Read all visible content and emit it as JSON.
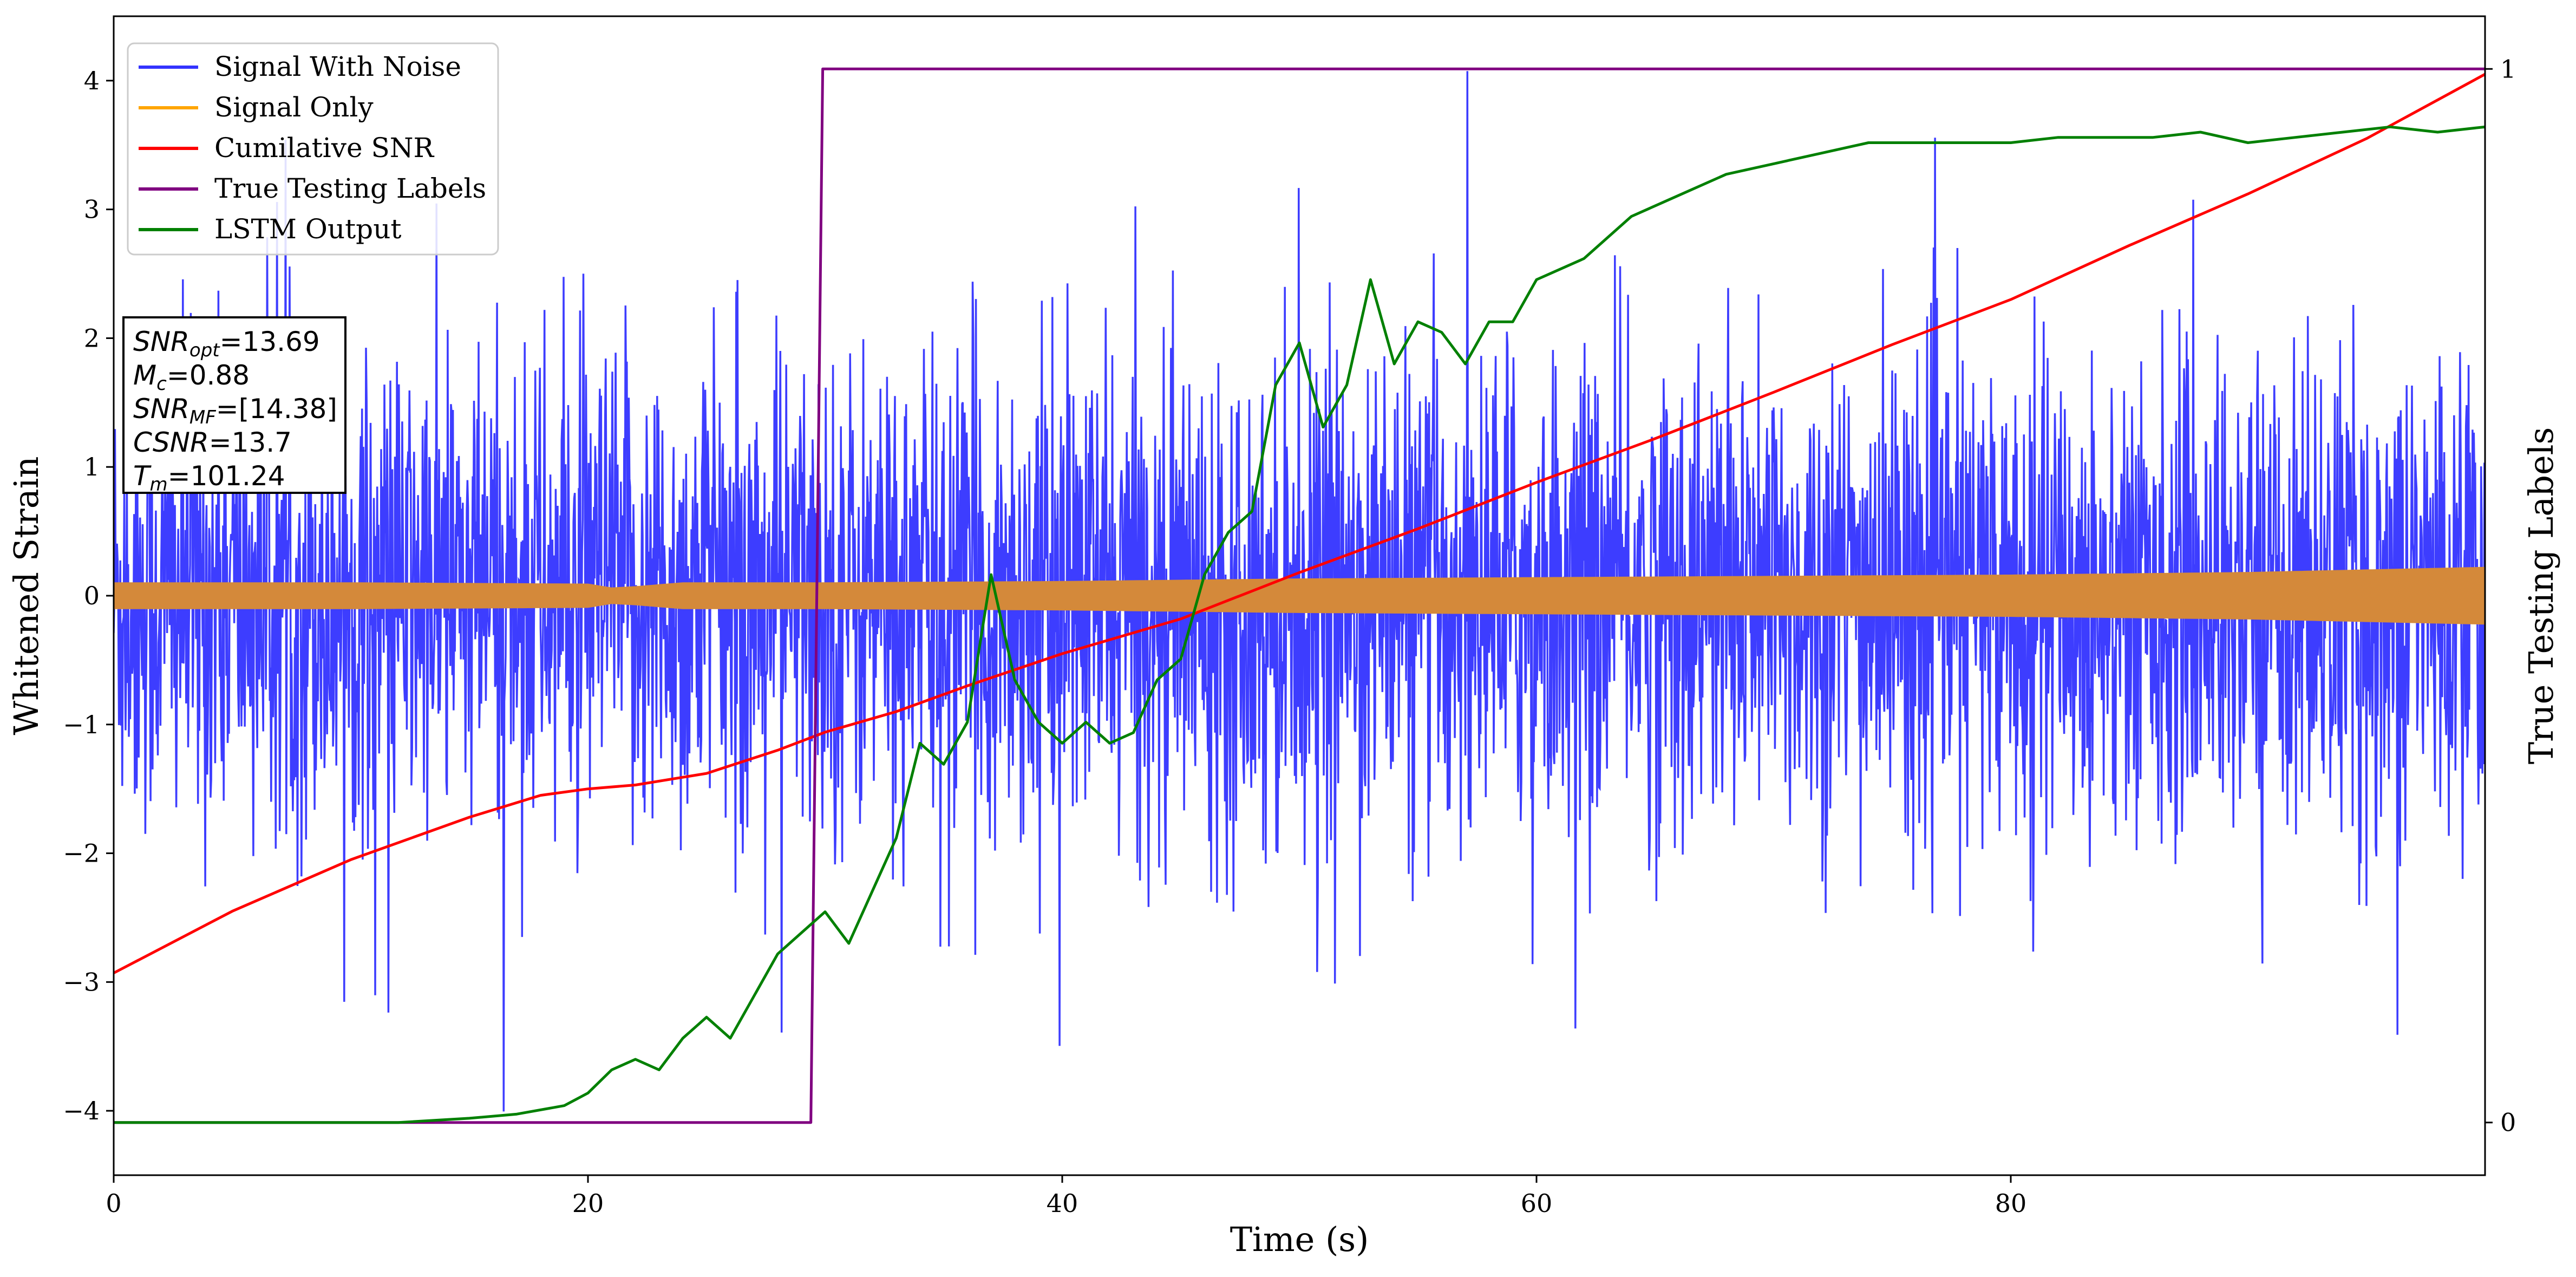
{
  "chart_data": {
    "type": "line",
    "xlabel": "Time (s)",
    "ylabel": "Whitened Strain",
    "ylabel_right": "True Testing Labels",
    "xlim": [
      0,
      100
    ],
    "ylim": [
      -4.5,
      4.5
    ],
    "ylim_right": [
      -0.05,
      1.05
    ],
    "x_ticks": [
      0,
      20,
      40,
      60,
      80
    ],
    "y_ticks": [
      -4,
      -3,
      -2,
      -1,
      0,
      1,
      2,
      3,
      4
    ],
    "y_ticks_right": [
      0,
      1
    ],
    "grid": false,
    "legend_placement": "upper-left",
    "annotation": {
      "lines": [
        {
          "var": "SNR",
          "sub": "opt",
          "value": "=13.69"
        },
        {
          "var": "M",
          "sub": "c",
          "value": "=0.88"
        },
        {
          "var": "SNR",
          "sub": "MF",
          "value": "=[14.38]"
        },
        {
          "var": "CSNR",
          "sub": "",
          "value": "=13.7"
        },
        {
          "var": "T",
          "sub": "m",
          "value": "=101.24"
        }
      ]
    },
    "series": [
      {
        "name": "Signal With Noise",
        "color": "#3333ff",
        "axis": "left",
        "style": "noise",
        "envelope_x": [
          0,
          10,
          20,
          30,
          40,
          50,
          60,
          70,
          80,
          90,
          100
        ],
        "envelope_amp": [
          1.5,
          1.5,
          1.5,
          1.5,
          1.5,
          1.5,
          1.5,
          1.5,
          1.5,
          1.5,
          1.5
        ]
      },
      {
        "name": "Signal Only",
        "color": "#ffa500",
        "axis": "left",
        "style": "band",
        "x": [
          0,
          10,
          20,
          21,
          22,
          24,
          30,
          40,
          50,
          60,
          70,
          80,
          90,
          95,
          100
        ],
        "amp": [
          0.1,
          0.1,
          0.09,
          0.06,
          0.07,
          0.1,
          0.1,
          0.11,
          0.13,
          0.14,
          0.15,
          0.16,
          0.18,
          0.2,
          0.22
        ]
      },
      {
        "name": "Cumilative SNR",
        "color": "#ff0000",
        "axis": "left",
        "x": [
          0,
          5,
          10,
          15,
          18,
          20,
          22,
          25,
          28,
          30,
          33,
          36,
          40,
          45,
          50,
          55,
          60,
          65,
          70,
          75,
          80,
          85,
          90,
          95,
          100
        ],
        "y": [
          -2.93,
          -2.45,
          -2.05,
          -1.72,
          -1.55,
          -1.5,
          -1.47,
          -1.38,
          -1.2,
          -1.06,
          -0.9,
          -0.7,
          -0.45,
          -0.18,
          0.18,
          0.52,
          0.88,
          1.22,
          1.58,
          1.95,
          2.3,
          2.72,
          3.12,
          3.55,
          4.05
        ]
      },
      {
        "name": "True Testing Labels",
        "color": "#800080",
        "axis": "right",
        "x": [
          0,
          29.4,
          29.9,
          100
        ],
        "y": [
          0,
          0,
          1,
          1
        ]
      },
      {
        "name": "LSTM Output",
        "color": "#008000",
        "axis": "right",
        "x": [
          0,
          10,
          12,
          15,
          17,
          19,
          20,
          21,
          22,
          23,
          24,
          25,
          26,
          27,
          28,
          29,
          30,
          31,
          32,
          33,
          34,
          35,
          36,
          37,
          38,
          39,
          40,
          41,
          42,
          43,
          44,
          45,
          46,
          47,
          48,
          49,
          50,
          51,
          52,
          53,
          54,
          55,
          56,
          57,
          58,
          59,
          60,
          62,
          64,
          66,
          68,
          70,
          72,
          74,
          76,
          78,
          80,
          82,
          84,
          86,
          88,
          90,
          92,
          94,
          96,
          98,
          100
        ],
        "y": [
          0,
          0,
          0,
          0.004,
          0.008,
          0.016,
          0.028,
          0.05,
          0.06,
          0.05,
          0.08,
          0.1,
          0.08,
          0.12,
          0.16,
          0.18,
          0.2,
          0.17,
          0.22,
          0.27,
          0.36,
          0.34,
          0.38,
          0.52,
          0.42,
          0.38,
          0.36,
          0.38,
          0.36,
          0.37,
          0.42,
          0.44,
          0.52,
          0.56,
          0.58,
          0.7,
          0.74,
          0.66,
          0.7,
          0.8,
          0.72,
          0.76,
          0.75,
          0.72,
          0.76,
          0.76,
          0.8,
          0.82,
          0.86,
          0.88,
          0.9,
          0.91,
          0.92,
          0.93,
          0.93,
          0.93,
          0.93,
          0.935,
          0.935,
          0.935,
          0.94,
          0.93,
          0.935,
          0.94,
          0.945,
          0.94,
          0.945
        ]
      }
    ]
  }
}
